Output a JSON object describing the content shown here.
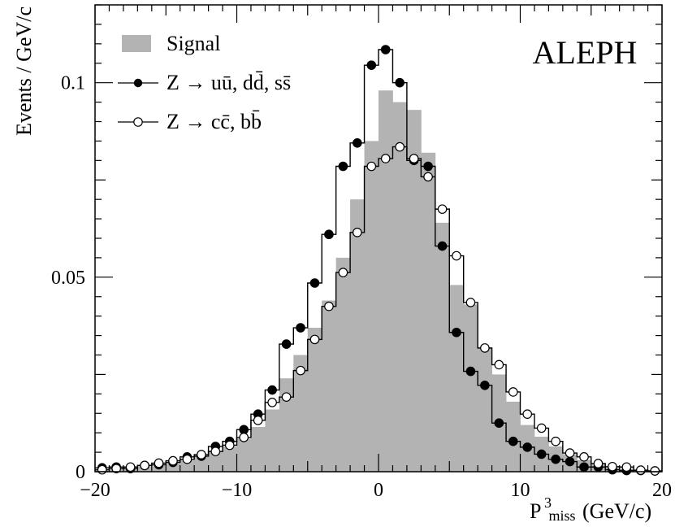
{
  "chart_data": {
    "type": "histogram",
    "title": "ALEPH",
    "xlabel_main": "P",
    "xlabel_sup": "3",
    "xlabel_sub": "miss",
    "xlabel_unit": "(GeV/c)",
    "ylabel": "Events / GeV/c",
    "xlim": [
      -20,
      20
    ],
    "ylim": [
      0,
      0.12
    ],
    "x_ticks": [
      -20,
      -10,
      0,
      10,
      20
    ],
    "x_tick_labels": [
      "−20",
      "−10",
      "0",
      "10",
      "20"
    ],
    "y_ticks": [
      0,
      0.05,
      0.1
    ],
    "y_tick_labels": [
      "0",
      "0.05",
      "0.1"
    ],
    "grid": false,
    "legend_position": "top-left",
    "bin_edges": [
      -20,
      -19,
      -18,
      -17,
      -16,
      -15,
      -14,
      -13,
      -12,
      -11,
      -10,
      -9,
      -8,
      -7,
      -6,
      -5,
      -4,
      -3,
      -2,
      -1,
      0,
      1,
      2,
      3,
      4,
      5,
      6,
      7,
      8,
      9,
      10,
      11,
      12,
      13,
      14,
      15,
      16,
      17,
      18,
      19,
      20
    ],
    "series": [
      {
        "name": "Signal",
        "style": "filled",
        "color": "#b3b3b3",
        "values": [
          0.0005,
          0.0008,
          0.001,
          0.0014,
          0.0018,
          0.0022,
          0.003,
          0.004,
          0.005,
          0.0065,
          0.0085,
          0.0115,
          0.016,
          0.024,
          0.03,
          0.037,
          0.044,
          0.055,
          0.07,
          0.085,
          0.098,
          0.095,
          0.093,
          0.082,
          0.064,
          0.048,
          0.043,
          0.032,
          0.025,
          0.018,
          0.012,
          0.009,
          0.0065,
          0.0045,
          0.003,
          0.002,
          0.0013,
          0.0009,
          0.0005,
          0.0003
        ]
      },
      {
        "name": "Z → uū, dd̄, ss̄",
        "style": "step-filled-markers",
        "color": "#000000",
        "values": [
          0.001,
          0.0012,
          0.0008,
          0.0016,
          0.0018,
          0.0024,
          0.0038,
          0.004,
          0.0065,
          0.0078,
          0.0108,
          0.0148,
          0.021,
          0.0328,
          0.037,
          0.0485,
          0.061,
          0.0785,
          0.0845,
          0.1045,
          0.1085,
          0.1,
          0.08,
          0.0785,
          0.058,
          0.0358,
          0.0258,
          0.0222,
          0.0125,
          0.0078,
          0.0063,
          0.0045,
          0.0032,
          0.0026,
          0.0012,
          0.0012,
          0.0005,
          0.0003,
          0.0003,
          0.0002
        ]
      },
      {
        "name": "Z → cc̄, bb̄",
        "style": "step-open-markers",
        "color": "#000000",
        "values": [
          0.0005,
          0.0008,
          0.0012,
          0.0016,
          0.0022,
          0.0028,
          0.0032,
          0.0044,
          0.0052,
          0.0068,
          0.0088,
          0.0132,
          0.0178,
          0.0192,
          0.026,
          0.034,
          0.0425,
          0.0512,
          0.0615,
          0.0785,
          0.0805,
          0.0835,
          0.0805,
          0.0758,
          0.0675,
          0.0555,
          0.0435,
          0.0318,
          0.0275,
          0.0205,
          0.0148,
          0.0112,
          0.0078,
          0.0048,
          0.0038,
          0.0021,
          0.0013,
          0.0012,
          0.0004,
          0.0002
        ]
      }
    ]
  }
}
